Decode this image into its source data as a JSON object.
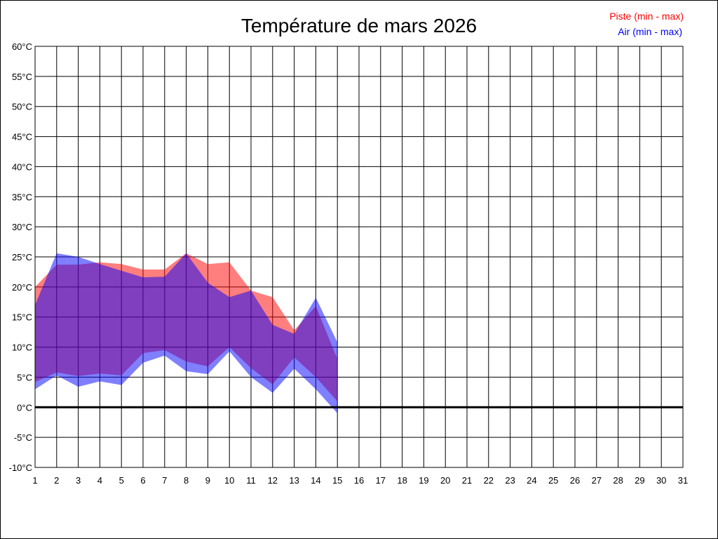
{
  "chart_data": {
    "type": "area",
    "title": "Température de mars 2026",
    "xlabel": "",
    "ylabel": "",
    "x": [
      1,
      2,
      3,
      4,
      5,
      6,
      7,
      8,
      9,
      10,
      11,
      12,
      13,
      14,
      15
    ],
    "x_ticks": [
      "1",
      "2",
      "3",
      "4",
      "5",
      "6",
      "7",
      "8",
      "9",
      "10",
      "11",
      "12",
      "13",
      "14",
      "15",
      "16",
      "17",
      "18",
      "19",
      "20",
      "21",
      "22",
      "23",
      "24",
      "25",
      "26",
      "27",
      "28",
      "29",
      "30",
      "31"
    ],
    "xlim": [
      1,
      31
    ],
    "y_ticks": [
      "60°C",
      "55°C",
      "50°C",
      "45°C",
      "40°C",
      "35°C",
      "30°C",
      "25°C",
      "20°C",
      "15°C",
      "10°C",
      "5°C",
      "0°C",
      "-5°C",
      "-10°C"
    ],
    "ylim": [
      -10,
      60
    ],
    "grid": true,
    "zero_line": true,
    "legend_position": "top-right",
    "series": [
      {
        "name": "Piste (min - max)",
        "color": "#ff0000",
        "min": [
          4.2,
          5.8,
          5.2,
          5.6,
          5.3,
          9.0,
          9.5,
          7.6,
          6.8,
          10.0,
          6.5,
          3.8,
          8.3,
          5.0,
          1.0
        ],
        "max": [
          20.0,
          23.7,
          23.7,
          24.1,
          23.8,
          22.9,
          22.9,
          25.6,
          23.8,
          24.1,
          19.4,
          18.3,
          12.8,
          16.8,
          8.0
        ]
      },
      {
        "name": "Air (min - max)",
        "color": "#0000ff",
        "min": [
          3.0,
          5.3,
          3.4,
          4.3,
          3.7,
          7.4,
          8.6,
          6.0,
          5.5,
          9.3,
          5.0,
          2.4,
          6.4,
          3.0,
          -1.0
        ],
        "max": [
          17.0,
          25.6,
          25.0,
          23.8,
          22.7,
          21.6,
          21.7,
          25.6,
          20.7,
          18.3,
          19.4,
          13.7,
          12.2,
          18.2,
          10.8
        ]
      }
    ]
  }
}
